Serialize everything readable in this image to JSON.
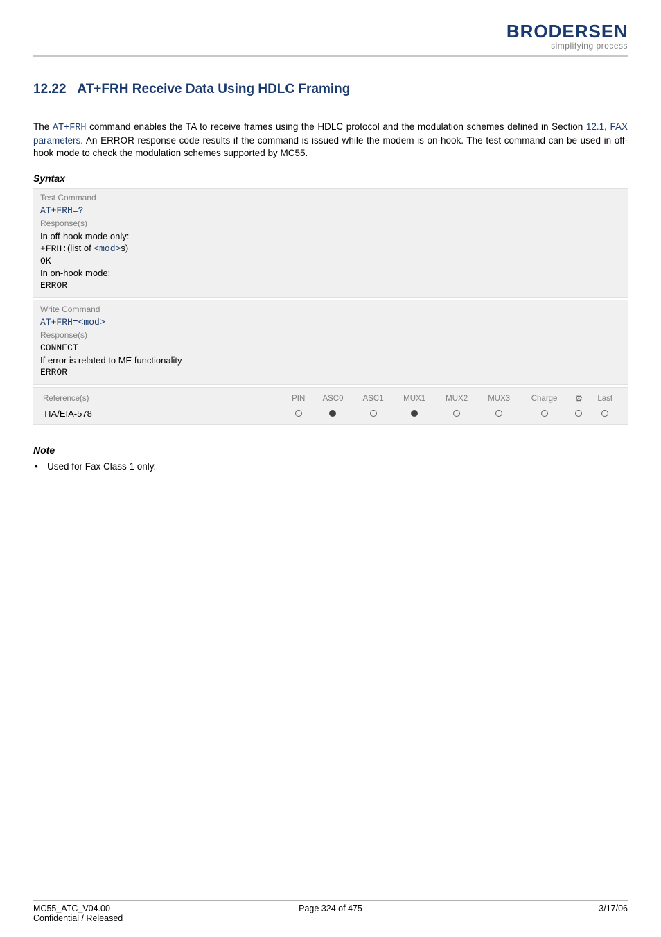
{
  "brand": {
    "name": "BRODERSEN",
    "tagline": "simplifying process",
    "color": "#1a3a6e"
  },
  "section": {
    "number": "12.22",
    "title": "AT+FRH   Receive Data Using HDLC Framing"
  },
  "intro": {
    "pre": "The ",
    "cmd": "AT+FRH",
    "mid1": " command enables the TA to receive frames using the HDLC protocol and the modulation schemes defined in Section ",
    "link_sec": "12.1",
    "mid2": ", ",
    "link_text": "FAX parameters",
    "post": ". An ERROR response code results if the command is issued while the modem is on-hook. The test command can be used in off-hook mode to check the modulation schemes supported by MC55."
  },
  "syntax_label": "Syntax",
  "test_cmd": {
    "label": "Test Command",
    "cmd": "AT+FRH=?",
    "resp_label": "Response(s)",
    "line1": "In off-hook mode only:",
    "line2_pre": "+FRH:",
    "line2_mid": "(list of ",
    "line2_param": "<mod>",
    "line2_post": "s)",
    "line3": "OK",
    "line4": "In on-hook mode:",
    "line5": "ERROR"
  },
  "write_cmd": {
    "label": "Write Command",
    "cmd_pre": "AT+FRH=",
    "cmd_param": "<mod>",
    "resp_label": "Response(s)",
    "line1": "CONNECT",
    "line2": "If error is related to ME functionality",
    "line3": "ERROR"
  },
  "ref": {
    "label": "Reference(s)",
    "value": "TIA/EIA-578",
    "cols": [
      "PIN",
      "ASC0",
      "ASC1",
      "MUX1",
      "MUX2",
      "MUX3",
      "Charge",
      "⚙",
      "Last"
    ],
    "dots": [
      "empty",
      "filled",
      "empty",
      "filled",
      "empty",
      "empty",
      "empty",
      "empty",
      "empty"
    ]
  },
  "note": {
    "heading": "Note",
    "item": "Used for Fax Class 1 only."
  },
  "footer": {
    "left1": "MC55_ATC_V04.00",
    "left2": "Confidential / Released",
    "center": "Page 324 of 475",
    "right": "3/17/06"
  },
  "colors": {
    "heading": "#1a3a6e",
    "grey_text": "#808080",
    "block_bg": "#f0f0f0",
    "rule": "#c8c8c8"
  }
}
